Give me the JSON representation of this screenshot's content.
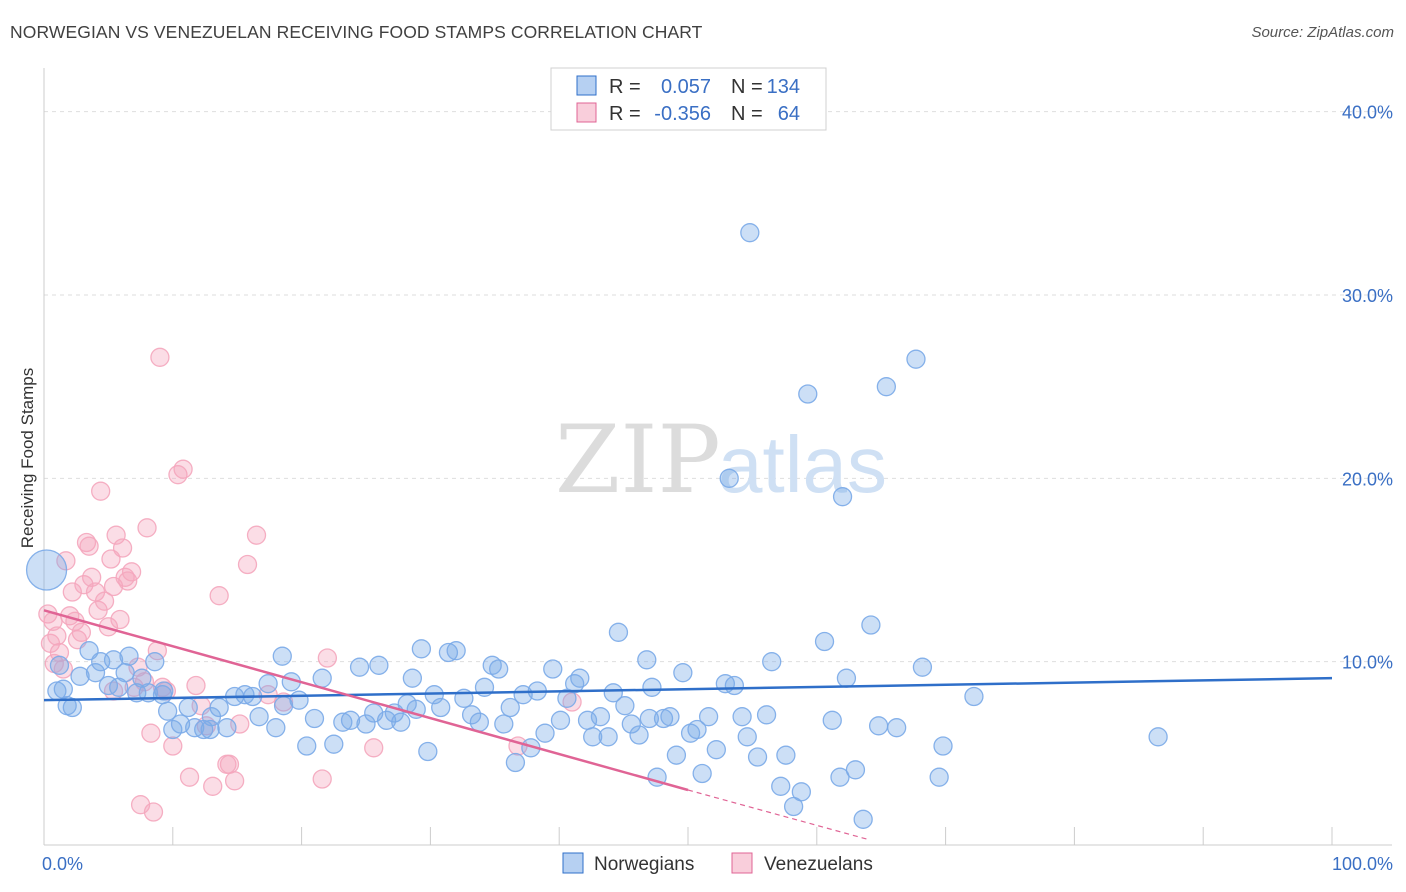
{
  "header": {
    "title": "NORWEGIAN VS VENEZUELAN RECEIVING FOOD STAMPS CORRELATION CHART",
    "source": "Source: ZipAtlas.com"
  },
  "watermark": {
    "zip": "ZIP",
    "atlas": "atlas"
  },
  "chart_data": {
    "type": "scatter",
    "ylabel": "Receiving Food Stamps",
    "xlim": [
      0,
      100
    ],
    "ylim": [
      0,
      42
    ],
    "x_tick_labels": [
      "0.0%",
      "100.0%"
    ],
    "y_ticks": [
      10,
      20,
      30,
      40
    ],
    "y_tick_labels": [
      "10.0%",
      "20.0%",
      "30.0%",
      "40.0%"
    ],
    "grid": true,
    "legend_position": "top-center",
    "series": [
      {
        "name": "Norwegians",
        "color": "#7aaae8",
        "line_color": "#2f6fc9",
        "stats": {
          "r_label": "R =",
          "r_value": "0.057",
          "n_label": "N =",
          "n_value": "134"
        },
        "trend": {
          "x": [
            0,
            100
          ],
          "y": [
            7.9,
            9.1
          ]
        },
        "points": [
          [
            0.2,
            15.0
          ],
          [
            1.2,
            9.8
          ],
          [
            1.5,
            8.5
          ],
          [
            1.8,
            7.6
          ],
          [
            2.2,
            7.5
          ],
          [
            2.8,
            9.2
          ],
          [
            3.5,
            10.6
          ],
          [
            4.0,
            9.4
          ],
          [
            4.4,
            10.0
          ],
          [
            5.0,
            8.7
          ],
          [
            5.4,
            10.1
          ],
          [
            5.8,
            8.6
          ],
          [
            6.3,
            9.4
          ],
          [
            6.6,
            10.3
          ],
          [
            7.2,
            8.3
          ],
          [
            7.6,
            9.1
          ],
          [
            8.1,
            8.3
          ],
          [
            8.6,
            10.0
          ],
          [
            9.2,
            8.2
          ],
          [
            9.6,
            7.3
          ],
          [
            10.0,
            6.3
          ],
          [
            10.6,
            6.6
          ],
          [
            11.2,
            7.5
          ],
          [
            11.7,
            6.4
          ],
          [
            12.4,
            6.3
          ],
          [
            13.0,
            7.0
          ],
          [
            13.6,
            7.5
          ],
          [
            14.2,
            6.4
          ],
          [
            14.8,
            8.1
          ],
          [
            15.6,
            8.2
          ],
          [
            16.2,
            8.1
          ],
          [
            16.7,
            7.0
          ],
          [
            17.4,
            8.8
          ],
          [
            18.0,
            6.4
          ],
          [
            18.6,
            7.6
          ],
          [
            19.2,
            8.9
          ],
          [
            19.8,
            7.9
          ],
          [
            20.4,
            5.4
          ],
          [
            21.0,
            6.9
          ],
          [
            21.6,
            9.1
          ],
          [
            22.5,
            5.5
          ],
          [
            23.2,
            6.7
          ],
          [
            23.8,
            6.8
          ],
          [
            24.5,
            9.7
          ],
          [
            25.0,
            6.6
          ],
          [
            25.6,
            7.2
          ],
          [
            26.0,
            9.8
          ],
          [
            26.6,
            6.8
          ],
          [
            27.2,
            7.2
          ],
          [
            27.7,
            6.7
          ],
          [
            28.2,
            7.7
          ],
          [
            28.6,
            9.1
          ],
          [
            29.3,
            10.7
          ],
          [
            29.8,
            5.1
          ],
          [
            30.3,
            8.2
          ],
          [
            30.8,
            7.5
          ],
          [
            31.4,
            10.5
          ],
          [
            32.0,
            10.6
          ],
          [
            32.6,
            8.0
          ],
          [
            33.2,
            7.1
          ],
          [
            33.8,
            6.7
          ],
          [
            34.2,
            8.6
          ],
          [
            34.8,
            9.8
          ],
          [
            35.3,
            9.6
          ],
          [
            35.7,
            6.6
          ],
          [
            36.2,
            7.5
          ],
          [
            36.6,
            4.5
          ],
          [
            37.2,
            8.2
          ],
          [
            37.8,
            5.3
          ],
          [
            38.3,
            8.4
          ],
          [
            38.9,
            6.1
          ],
          [
            39.5,
            9.6
          ],
          [
            40.1,
            6.8
          ],
          [
            40.6,
            8.0
          ],
          [
            41.2,
            8.8
          ],
          [
            41.6,
            9.1
          ],
          [
            42.2,
            6.8
          ],
          [
            42.6,
            5.9
          ],
          [
            43.2,
            7.0
          ],
          [
            43.8,
            5.9
          ],
          [
            44.2,
            8.3
          ],
          [
            44.6,
            11.6
          ],
          [
            45.1,
            7.6
          ],
          [
            45.6,
            6.6
          ],
          [
            46.2,
            6.0
          ],
          [
            46.8,
            10.1
          ],
          [
            47.2,
            8.6
          ],
          [
            47.6,
            3.7
          ],
          [
            48.1,
            6.9
          ],
          [
            48.6,
            7.0
          ],
          [
            49.1,
            4.9
          ],
          [
            49.6,
            9.4
          ],
          [
            50.2,
            6.1
          ],
          [
            50.7,
            6.3
          ],
          [
            51.1,
            3.9
          ],
          [
            51.6,
            7.0
          ],
          [
            52.2,
            5.2
          ],
          [
            52.9,
            8.8
          ],
          [
            53.6,
            8.7
          ],
          [
            54.2,
            7.0
          ],
          [
            54.6,
            5.9
          ],
          [
            54.8,
            33.4
          ],
          [
            55.4,
            4.8
          ],
          [
            56.1,
            7.1
          ],
          [
            56.5,
            10.0
          ],
          [
            57.2,
            3.2
          ],
          [
            57.6,
            4.9
          ],
          [
            58.2,
            2.1
          ],
          [
            58.8,
            2.9
          ],
          [
            59.3,
            24.6
          ],
          [
            60.6,
            11.1
          ],
          [
            61.2,
            6.8
          ],
          [
            61.8,
            3.7
          ],
          [
            62.3,
            9.1
          ],
          [
            63.0,
            4.1
          ],
          [
            63.6,
            1.4
          ],
          [
            64.2,
            12.0
          ],
          [
            64.8,
            6.5
          ],
          [
            65.4,
            25.0
          ],
          [
            66.2,
            6.4
          ],
          [
            67.7,
            26.5
          ],
          [
            68.2,
            9.7
          ],
          [
            69.5,
            3.7
          ],
          [
            69.8,
            5.4
          ],
          [
            72.2,
            8.1
          ],
          [
            86.5,
            5.9
          ],
          [
            53.2,
            20.0
          ],
          [
            62.0,
            19.0
          ],
          [
            1.0,
            8.4
          ],
          [
            47.0,
            6.9
          ],
          [
            9.3,
            8.4
          ],
          [
            12.9,
            6.3
          ],
          [
            18.5,
            10.3
          ],
          [
            28.9,
            7.4
          ]
        ]
      },
      {
        "name": "Venezuelans",
        "color": "#f4a6bd",
        "line_color": "#e06495",
        "stats": {
          "r_label": "R =",
          "r_value": "-0.356",
          "n_label": "N =",
          "n_value": "64"
        },
        "trend": {
          "x": [
            0,
            50
          ],
          "y": [
            12.8,
            3.0
          ]
        },
        "trend_dashed": {
          "x": [
            50,
            64
          ],
          "y": [
            3.0,
            0.3
          ]
        },
        "points": [
          [
            0.3,
            12.6
          ],
          [
            0.5,
            11.0
          ],
          [
            0.7,
            12.2
          ],
          [
            0.8,
            9.9
          ],
          [
            1.0,
            11.4
          ],
          [
            1.2,
            10.5
          ],
          [
            1.5,
            9.6
          ],
          [
            1.7,
            15.5
          ],
          [
            2.0,
            12.5
          ],
          [
            2.2,
            13.8
          ],
          [
            2.4,
            12.2
          ],
          [
            2.6,
            11.2
          ],
          [
            2.9,
            11.6
          ],
          [
            3.1,
            14.2
          ],
          [
            3.3,
            16.5
          ],
          [
            3.5,
            16.3
          ],
          [
            3.7,
            14.6
          ],
          [
            4.0,
            13.8
          ],
          [
            4.2,
            12.8
          ],
          [
            4.4,
            19.3
          ],
          [
            4.7,
            13.3
          ],
          [
            5.0,
            11.9
          ],
          [
            5.2,
            15.6
          ],
          [
            5.4,
            14.1
          ],
          [
            5.6,
            16.9
          ],
          [
            5.9,
            12.3
          ],
          [
            6.1,
            16.2
          ],
          [
            6.3,
            14.6
          ],
          [
            6.5,
            14.4
          ],
          [
            6.8,
            14.9
          ],
          [
            7.0,
            8.6
          ],
          [
            7.3,
            9.7
          ],
          [
            7.5,
            2.2
          ],
          [
            7.8,
            8.9
          ],
          [
            8.0,
            17.3
          ],
          [
            8.3,
            6.1
          ],
          [
            8.5,
            1.8
          ],
          [
            8.8,
            10.6
          ],
          [
            9.0,
            26.6
          ],
          [
            9.5,
            8.4
          ],
          [
            10.0,
            5.4
          ],
          [
            10.4,
            20.2
          ],
          [
            10.8,
            20.5
          ],
          [
            11.3,
            3.7
          ],
          [
            11.8,
            8.7
          ],
          [
            12.2,
            7.6
          ],
          [
            12.6,
            6.5
          ],
          [
            13.1,
            3.2
          ],
          [
            13.6,
            13.6
          ],
          [
            14.2,
            4.4
          ],
          [
            14.8,
            3.5
          ],
          [
            15.2,
            6.6
          ],
          [
            15.8,
            15.3
          ],
          [
            16.5,
            16.9
          ],
          [
            17.4,
            8.2
          ],
          [
            18.6,
            7.8
          ],
          [
            21.6,
            3.6
          ],
          [
            22.0,
            10.2
          ],
          [
            25.6,
            5.3
          ],
          [
            41.0,
            7.8
          ],
          [
            36.8,
            5.4
          ],
          [
            9.2,
            8.6
          ],
          [
            5.4,
            8.4
          ],
          [
            14.4,
            4.4
          ]
        ]
      }
    ]
  }
}
